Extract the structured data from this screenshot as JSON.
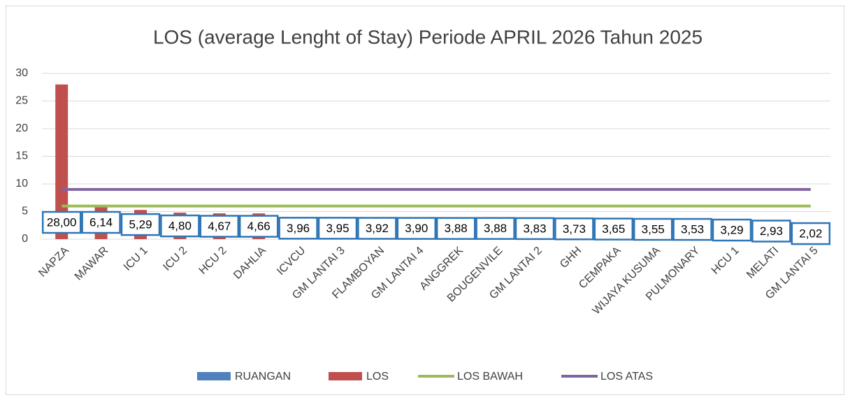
{
  "chart_data": {
    "type": "bar",
    "title": "LOS (average Lenght of Stay) Periode APRIL 2026 Tahun 2025",
    "categories": [
      "NAPZA",
      "MAWAR",
      "ICU 1",
      "ICU 2",
      "HCU 2",
      "DAHLIA",
      "ICVCU",
      "GM LANTAI 3",
      "FLAMBOYAN",
      "GM LANTAI 4",
      "ANGGREK",
      "BOUGENVILE",
      "GM LANTAI 2",
      "GHH",
      "CEMPAKA",
      "WIJAYA KUSUMA",
      "PULMONARY",
      "HCU 1",
      "MELATI",
      "GM LANTAI 5"
    ],
    "series": [
      {
        "name": "RUANGAN",
        "color": "#4f81bd",
        "type": "bar",
        "values": [
          null,
          null,
          null,
          null,
          null,
          null,
          null,
          null,
          null,
          null,
          null,
          null,
          null,
          null,
          null,
          null,
          null,
          null,
          null,
          null
        ]
      },
      {
        "name": "LOS",
        "color": "#c0504d",
        "type": "bar",
        "values": [
          28,
          6.14,
          5.29,
          4.8,
          4.67,
          4.66,
          3.96,
          3.95,
          3.92,
          3.9,
          3.88,
          3.88,
          3.83,
          3.73,
          3.65,
          3.55,
          3.53,
          3.29,
          2.93,
          2.02
        ],
        "value_labels": [
          "28,00",
          "6,14",
          "5,29",
          "4,80",
          "4,67",
          "4,66",
          "3,96",
          "3,95",
          "3,92",
          "3,90",
          "3,88",
          "3,88",
          "3,83",
          "3,73",
          "3,65",
          "3,55",
          "3,53",
          "3,29",
          "2,93",
          "2,02"
        ]
      },
      {
        "name": "LOS BAWAH",
        "color": "#9bbb59",
        "type": "line",
        "values": [
          6,
          6,
          6,
          6,
          6,
          6,
          6,
          6,
          6,
          6,
          6,
          6,
          6,
          6,
          6,
          6,
          6,
          6,
          6,
          6
        ]
      },
      {
        "name": "LOS ATAS",
        "color": "#8064a2",
        "type": "line",
        "values": [
          9,
          9,
          9,
          9,
          9,
          9,
          9,
          9,
          9,
          9,
          9,
          9,
          9,
          9,
          9,
          9,
          9,
          9,
          9,
          9
        ]
      }
    ],
    "ylim": [
      0,
      30
    ],
    "yticks": [
      0,
      5,
      10,
      15,
      20,
      25,
      30
    ],
    "grid": true,
    "legend": "bottom"
  }
}
